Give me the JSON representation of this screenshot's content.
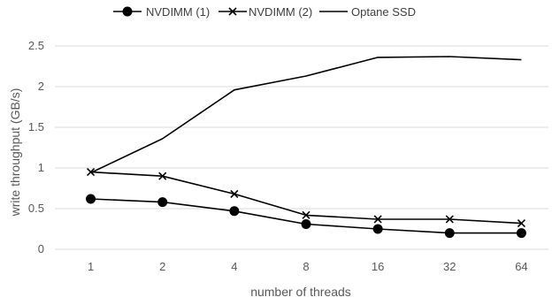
{
  "chart_data": {
    "type": "line",
    "title": "",
    "xlabel": "number of threads",
    "ylabel": "write throughput (GB/s)",
    "categories": [
      "1",
      "2",
      "4",
      "8",
      "16",
      "32",
      "64"
    ],
    "ylim": [
      0,
      2.5
    ],
    "yticks": [
      "0",
      "0.5",
      "1",
      "1.5",
      "2",
      "2.5"
    ],
    "grid": "horizontal",
    "legend_position": "top",
    "series": [
      {
        "name": "NVDIMM (1)",
        "marker": "circle",
        "color": "#000000",
        "values": [
          0.62,
          0.58,
          0.47,
          0.31,
          0.25,
          0.2,
          0.2
        ]
      },
      {
        "name": "NVDIMM (2)",
        "marker": "x",
        "color": "#000000",
        "values": [
          0.95,
          0.9,
          0.68,
          0.42,
          0.37,
          0.37,
          0.32
        ]
      },
      {
        "name": "Optane SSD",
        "marker": "none",
        "color": "#000000",
        "values": [
          0.94,
          1.36,
          1.96,
          2.13,
          2.36,
          2.37,
          2.33
        ]
      }
    ]
  }
}
